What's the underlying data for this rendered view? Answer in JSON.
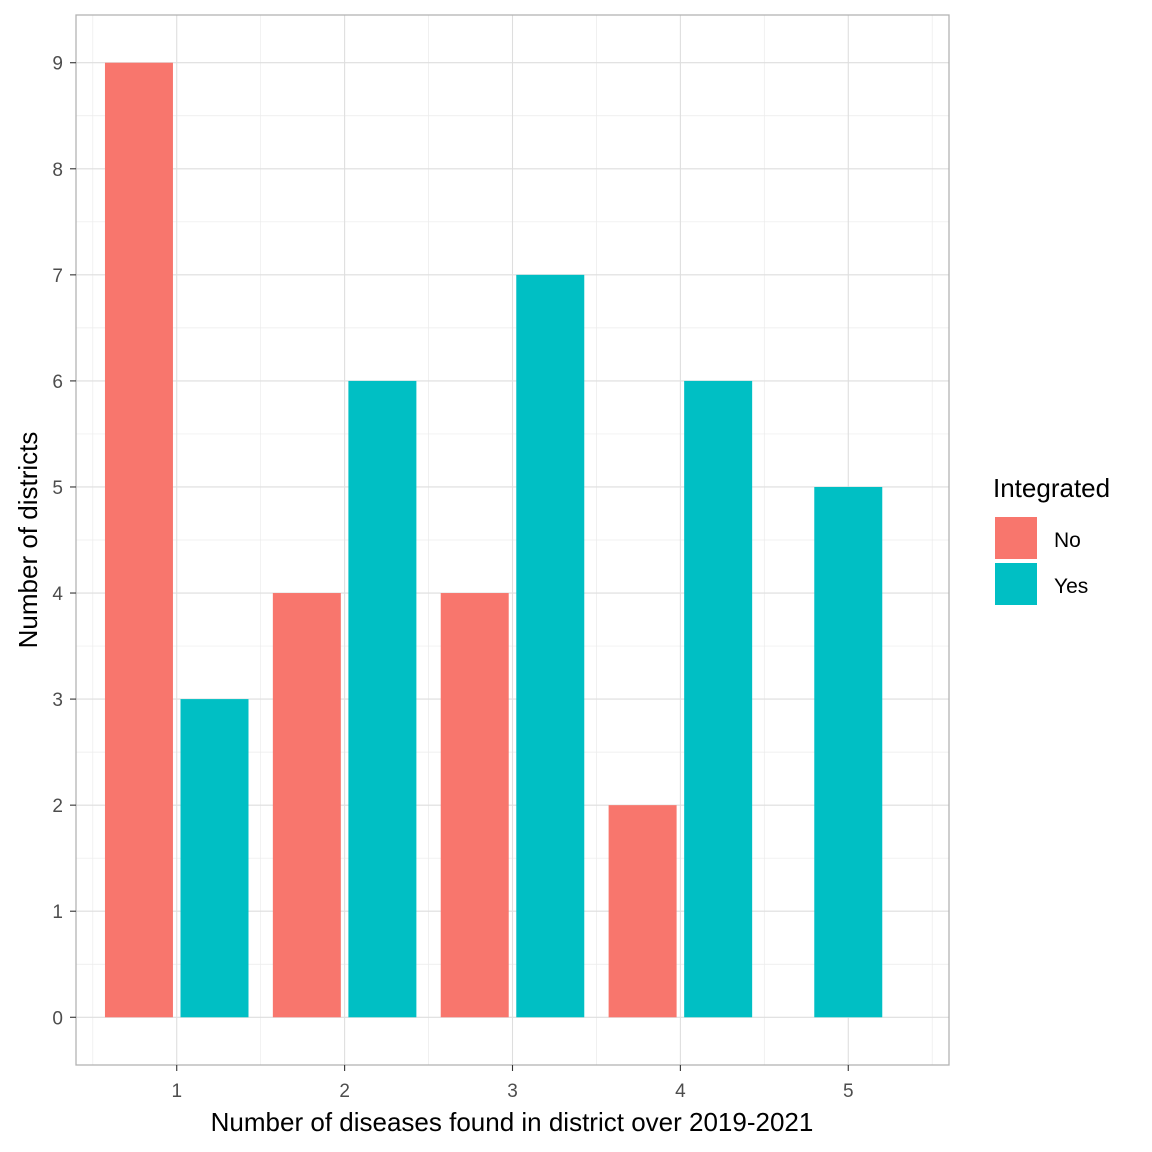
{
  "chart_data": {
    "type": "bar",
    "xlabel": "Number of diseases found in district over 2019-2021",
    "ylabel": "Number of districts",
    "categories": [
      "1",
      "2",
      "3",
      "4",
      "5"
    ],
    "series": [
      {
        "name": "No",
        "color": "#F8766D",
        "values": [
          9,
          4,
          4,
          2,
          null
        ]
      },
      {
        "name": "Yes",
        "color": "#00BFC4",
        "values": [
          3,
          6,
          7,
          6,
          5
        ]
      }
    ],
    "ylim": [
      -0.45,
      9.45
    ],
    "y_ticks": [
      "0",
      "1",
      "2",
      "3",
      "4",
      "5",
      "6",
      "7",
      "8",
      "9"
    ],
    "grid": true,
    "legend": {
      "title": "Integrated",
      "position": "right"
    }
  }
}
